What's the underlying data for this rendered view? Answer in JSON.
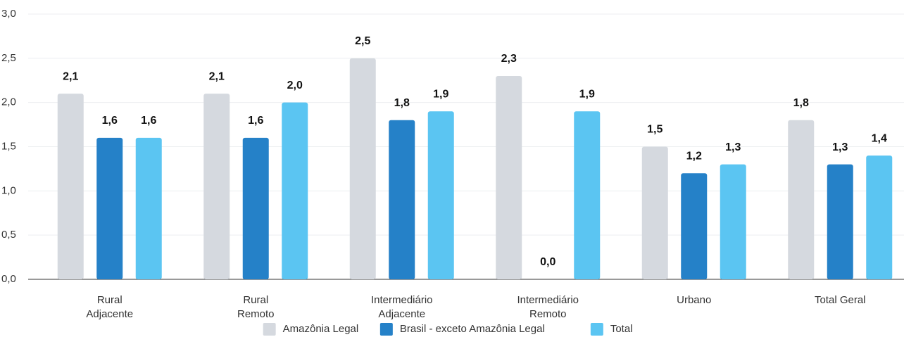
{
  "chart_data": {
    "type": "bar",
    "categories": [
      "Rural\nAdjacente",
      "Rural\nRemoto",
      "Intermediário\nAdjacente",
      "Intermediário\nRemoto",
      "Urbano",
      "Total Geral"
    ],
    "series": [
      {
        "name": "Amazônia Legal",
        "color": "#d5d9df",
        "values": [
          2.1,
          2.1,
          2.5,
          2.3,
          1.5,
          1.8
        ],
        "value_labels": [
          "2,1",
          "2,1",
          "2,5",
          "2,3",
          "1,5",
          "1,8"
        ]
      },
      {
        "name": "Brasil - exceto Amazônia Legal",
        "color": "#2581c8",
        "values": [
          1.6,
          1.6,
          1.8,
          0.0,
          1.2,
          1.3
        ],
        "value_labels": [
          "1,6",
          "1,6",
          "1,8",
          "0,0",
          "1,2",
          "1,3"
        ]
      },
      {
        "name": "Total",
        "color": "#5bc5f2",
        "values": [
          1.6,
          2.0,
          1.9,
          1.9,
          1.3,
          1.4
        ],
        "value_labels": [
          "1,6",
          "2,0",
          "1,9",
          "1,9",
          "1,3",
          "1,4"
        ]
      }
    ],
    "ylim": [
      0,
      3.0
    ],
    "yticks": [
      {
        "value": 0,
        "label": "0,0"
      },
      {
        "value": 0.5,
        "label": "0,5"
      },
      {
        "value": 1.0,
        "label": "1,0"
      },
      {
        "value": 1.5,
        "label": "1,5"
      },
      {
        "value": 2.0,
        "label": "2,0"
      },
      {
        "value": 2.5,
        "label": "2,5"
      },
      {
        "value": 3.0,
        "label": "3,0"
      }
    ],
    "grid": true,
    "legend": "bottom"
  }
}
